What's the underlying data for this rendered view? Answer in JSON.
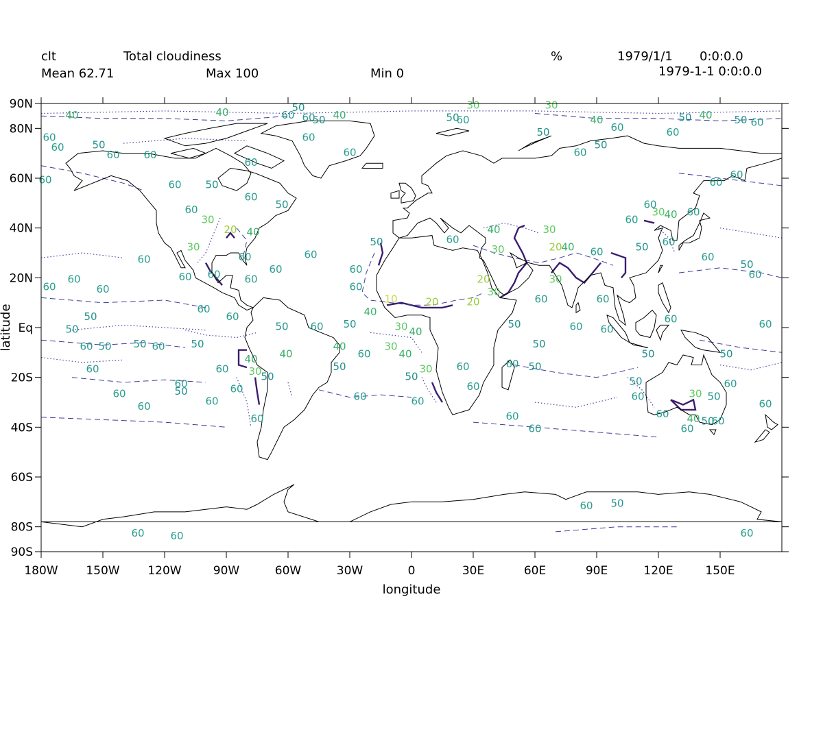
{
  "header": {
    "variable": "clt",
    "long_name": "Total cloudiness",
    "units": "%",
    "date": "1979/1/1",
    "time": "0:0:0.0",
    "mean": "Mean 62.71",
    "max": "Max 100",
    "min": "Min 0",
    "datetime": "1979-1-1 0:0:0.0"
  },
  "axes": {
    "xlabel": "longitude",
    "ylabel": "latitude",
    "lon_range": [
      -180,
      180
    ],
    "lat_range": [
      -90,
      90
    ],
    "lon_ticks": [
      "180W",
      "150W",
      "120W",
      "90W",
      "60W",
      "30W",
      "0",
      "30E",
      "60E",
      "90E",
      "120E",
      "150E"
    ],
    "lon_tick_values": [
      -180,
      -150,
      -120,
      -90,
      -60,
      -30,
      0,
      30,
      60,
      90,
      120,
      150
    ],
    "lat_ticks": [
      "90N",
      "80N",
      "60N",
      "40N",
      "20N",
      "Eq",
      "20S",
      "40S",
      "60S",
      "80S",
      "90S"
    ],
    "lat_tick_values": [
      90,
      80,
      60,
      40,
      20,
      0,
      -20,
      -40,
      -60,
      -80,
      -90
    ]
  },
  "colors": {
    "coastline": "#000000",
    "contour_10": "#c8d64a",
    "contour_20": "#9ccc3c",
    "contour_30": "#5ec962",
    "contour_40": "#3aaf6a",
    "contour_50": "#21918c",
    "contour_60": "#2a9d8f",
    "contour_solid": "#3b1c6e",
    "contour_dash": "#3c3c9c",
    "contour_dot": "#4a3fa0"
  },
  "contour_labels": [
    {
      "v": "40",
      "lon": -165,
      "lat": 84
    },
    {
      "v": "40",
      "lon": -92,
      "lat": 85
    },
    {
      "v": "50",
      "lon": -55,
      "lat": 87
    },
    {
      "v": "60",
      "lon": -60,
      "lat": 84
    },
    {
      "v": "60",
      "lon": -50,
      "lat": 83
    },
    {
      "v": "50",
      "lon": -45,
      "lat": 82
    },
    {
      "v": "40",
      "lon": -35,
      "lat": 84
    },
    {
      "v": "50",
      "lon": 20,
      "lat": 83
    },
    {
      "v": "30",
      "lon": 30,
      "lat": 88
    },
    {
      "v": "30",
      "lon": 68,
      "lat": 88
    },
    {
      "v": "60",
      "lon": 25,
      "lat": 82
    },
    {
      "v": "40",
      "lon": 90,
      "lat": 82
    },
    {
      "v": "60",
      "lon": 100,
      "lat": 79
    },
    {
      "v": "50",
      "lon": 133,
      "lat": 83
    },
    {
      "v": "40",
      "lon": 143,
      "lat": 84
    },
    {
      "v": "50",
      "lon": 160,
      "lat": 82
    },
    {
      "v": "60",
      "lon": 168,
      "lat": 81
    },
    {
      "v": "60",
      "lon": 127,
      "lat": 77
    },
    {
      "v": "50",
      "lon": 64,
      "lat": 77
    },
    {
      "v": "50",
      "lon": 92,
      "lat": 72
    },
    {
      "v": "60",
      "lon": 82,
      "lat": 69
    },
    {
      "v": "60",
      "lon": -172,
      "lat": 71
    },
    {
      "v": "50",
      "lon": -152,
      "lat": 72
    },
    {
      "v": "60",
      "lon": -145,
      "lat": 68
    },
    {
      "v": "60",
      "lon": -127,
      "lat": 68
    },
    {
      "v": "60",
      "lon": -50,
      "lat": 75
    },
    {
      "v": "60",
      "lon": -30,
      "lat": 69
    },
    {
      "v": "60",
      "lon": -78,
      "lat": 65
    },
    {
      "v": "60",
      "lon": -178,
      "lat": 58
    },
    {
      "v": "60",
      "lon": -115,
      "lat": 56
    },
    {
      "v": "50",
      "lon": -97,
      "lat": 56
    },
    {
      "v": "60",
      "lon": -107,
      "lat": 46
    },
    {
      "v": "60",
      "lon": -78,
      "lat": 51
    },
    {
      "v": "50",
      "lon": -63,
      "lat": 48
    },
    {
      "v": "30",
      "lon": -99,
      "lat": 42
    },
    {
      "v": "20",
      "lon": -88,
      "lat": 38
    },
    {
      "v": "40",
      "lon": -77,
      "lat": 37
    },
    {
      "v": "30",
      "lon": -106,
      "lat": 31
    },
    {
      "v": "60",
      "lon": -81,
      "lat": 27
    },
    {
      "v": "60",
      "lon": -110,
      "lat": 19
    },
    {
      "v": "60",
      "lon": -96,
      "lat": 20
    },
    {
      "v": "60",
      "lon": -78,
      "lat": 18
    },
    {
      "v": "60",
      "lon": -66,
      "lat": 22
    },
    {
      "v": "60",
      "lon": -49,
      "lat": 28
    },
    {
      "v": "60",
      "lon": -130,
      "lat": 26
    },
    {
      "v": "60",
      "lon": -164,
      "lat": 18
    },
    {
      "v": "60",
      "lon": -176,
      "lat": 15
    },
    {
      "v": "60",
      "lon": -150,
      "lat": 14
    },
    {
      "v": "60",
      "lon": -101,
      "lat": 6
    },
    {
      "v": "60",
      "lon": -87,
      "lat": 3
    },
    {
      "v": "50",
      "lon": -156,
      "lat": 3
    },
    {
      "v": "50",
      "lon": -165,
      "lat": -2
    },
    {
      "v": "60",
      "lon": -158,
      "lat": -9
    },
    {
      "v": "50",
      "lon": -149,
      "lat": -9
    },
    {
      "v": "50",
      "lon": -132,
      "lat": -8
    },
    {
      "v": "60",
      "lon": -123,
      "lat": -9
    },
    {
      "v": "50",
      "lon": -104,
      "lat": -8
    },
    {
      "v": "50",
      "lon": -63,
      "lat": -1
    },
    {
      "v": "40",
      "lon": -61,
      "lat": -12
    },
    {
      "v": "60",
      "lon": -46,
      "lat": -1
    },
    {
      "v": "60",
      "lon": -155,
      "lat": -18
    },
    {
      "v": "60",
      "lon": -142,
      "lat": -28
    },
    {
      "v": "60",
      "lon": -130,
      "lat": -33
    },
    {
      "v": "60",
      "lon": -112,
      "lat": -24
    },
    {
      "v": "50",
      "lon": -112,
      "lat": -27
    },
    {
      "v": "60",
      "lon": -97,
      "lat": -31
    },
    {
      "v": "60",
      "lon": -92,
      "lat": -18
    },
    {
      "v": "60",
      "lon": -85,
      "lat": -26
    },
    {
      "v": "30",
      "lon": -76,
      "lat": -19
    },
    {
      "v": "40",
      "lon": -78,
      "lat": -14
    },
    {
      "v": "50",
      "lon": -70,
      "lat": -21
    },
    {
      "v": "60",
      "lon": -75,
      "lat": -38
    },
    {
      "v": "50",
      "lon": -35,
      "lat": -17
    },
    {
      "v": "60",
      "lon": -23,
      "lat": -12
    },
    {
      "v": "40",
      "lon": -35,
      "lat": -9
    },
    {
      "v": "60",
      "lon": -25,
      "lat": -29
    },
    {
      "v": "60",
      "lon": -27,
      "lat": 15
    },
    {
      "v": "60",
      "lon": -27,
      "lat": 22
    },
    {
      "v": "50",
      "lon": -30,
      "lat": 0
    },
    {
      "v": "50",
      "lon": -17,
      "lat": 33
    },
    {
      "v": "10",
      "lon": -10,
      "lat": 10
    },
    {
      "v": "40",
      "lon": -20,
      "lat": 5
    },
    {
      "v": "30",
      "lon": -5,
      "lat": -1
    },
    {
      "v": "40",
      "lon": 2,
      "lat": -3
    },
    {
      "v": "30",
      "lon": -10,
      "lat": -9
    },
    {
      "v": "40",
      "lon": -3,
      "lat": -12
    },
    {
      "v": "50",
      "lon": 0,
      "lat": -21
    },
    {
      "v": "30",
      "lon": 7,
      "lat": -18
    },
    {
      "v": "20",
      "lon": 30,
      "lat": 9
    },
    {
      "v": "60",
      "lon": 25,
      "lat": -17
    },
    {
      "v": "60",
      "lon": 30,
      "lat": -25
    },
    {
      "v": "60",
      "lon": 3,
      "lat": -31
    },
    {
      "v": "20",
      "lon": 10,
      "lat": 9
    },
    {
      "v": "60",
      "lon": 20,
      "lat": 34
    },
    {
      "v": "40",
      "lon": 40,
      "lat": 38
    },
    {
      "v": "30",
      "lon": 42,
      "lat": 30
    },
    {
      "v": "30",
      "lon": 40,
      "lat": 13
    },
    {
      "v": "20",
      "lon": 35,
      "lat": 18
    },
    {
      "v": "60",
      "lon": 63,
      "lat": 10
    },
    {
      "v": "30",
      "lon": 67,
      "lat": 38
    },
    {
      "v": "20",
      "lon": 70,
      "lat": 31
    },
    {
      "v": "40",
      "lon": 76,
      "lat": 31
    },
    {
      "v": "30",
      "lon": 70,
      "lat": 18
    },
    {
      "v": "60",
      "lon": 90,
      "lat": 29
    },
    {
      "v": "60",
      "lon": 80,
      "lat": -1
    },
    {
      "v": "60",
      "lon": 93,
      "lat": 10
    },
    {
      "v": "60",
      "lon": 95,
      "lat": -2
    },
    {
      "v": "50",
      "lon": 50,
      "lat": 0
    },
    {
      "v": "50",
      "lon": 62,
      "lat": -8
    },
    {
      "v": "50",
      "lon": 60,
      "lat": -17
    },
    {
      "v": "60",
      "lon": 49,
      "lat": -16
    },
    {
      "v": "60",
      "lon": 49,
      "lat": -37
    },
    {
      "v": "60",
      "lon": 60,
      "lat": -42
    },
    {
      "v": "60",
      "lon": 107,
      "lat": 42
    },
    {
      "v": "60",
      "lon": 116,
      "lat": 48
    },
    {
      "v": "30",
      "lon": 120,
      "lat": 45
    },
    {
      "v": "40",
      "lon": 126,
      "lat": 44
    },
    {
      "v": "60",
      "lon": 137,
      "lat": 45
    },
    {
      "v": "50",
      "lon": 112,
      "lat": 31
    },
    {
      "v": "60",
      "lon": 125,
      "lat": 33
    },
    {
      "v": "60",
      "lon": 148,
      "lat": 57
    },
    {
      "v": "60",
      "lon": 158,
      "lat": 60
    },
    {
      "v": "60",
      "lon": 144,
      "lat": 27
    },
    {
      "v": "50",
      "lon": 163,
      "lat": 24
    },
    {
      "v": "60",
      "lon": 167,
      "lat": 20
    },
    {
      "v": "60",
      "lon": 126,
      "lat": 2
    },
    {
      "v": "60",
      "lon": 172,
      "lat": 0
    },
    {
      "v": "50",
      "lon": 115,
      "lat": -12
    },
    {
      "v": "50",
      "lon": 153,
      "lat": -12
    },
    {
      "v": "60",
      "lon": 155,
      "lat": -24
    },
    {
      "v": "50",
      "lon": 109,
      "lat": -23
    },
    {
      "v": "60",
      "lon": 110,
      "lat": -29
    },
    {
      "v": "30",
      "lon": 138,
      "lat": -28
    },
    {
      "v": "50",
      "lon": 147,
      "lat": -29
    },
    {
      "v": "40",
      "lon": 137,
      "lat": -38
    },
    {
      "v": "50",
      "lon": 144,
      "lat": -39
    },
    {
      "v": "60",
      "lon": 122,
      "lat": -36
    },
    {
      "v": "60",
      "lon": 134,
      "lat": -42
    },
    {
      "v": "60",
      "lon": 149,
      "lat": -39
    },
    {
      "v": "60",
      "lon": 172,
      "lat": -32
    },
    {
      "v": "60",
      "lon": 85,
      "lat": -73
    },
    {
      "v": "50",
      "lon": 100,
      "lat": -72
    },
    {
      "v": "60",
      "lon": 163,
      "lat": -84
    },
    {
      "v": "60",
      "lon": -133,
      "lat": -84
    },
    {
      "v": "60",
      "lon": -114,
      "lat": -85
    },
    {
      "v": "60",
      "lon": -176,
      "lat": 75
    }
  ]
}
